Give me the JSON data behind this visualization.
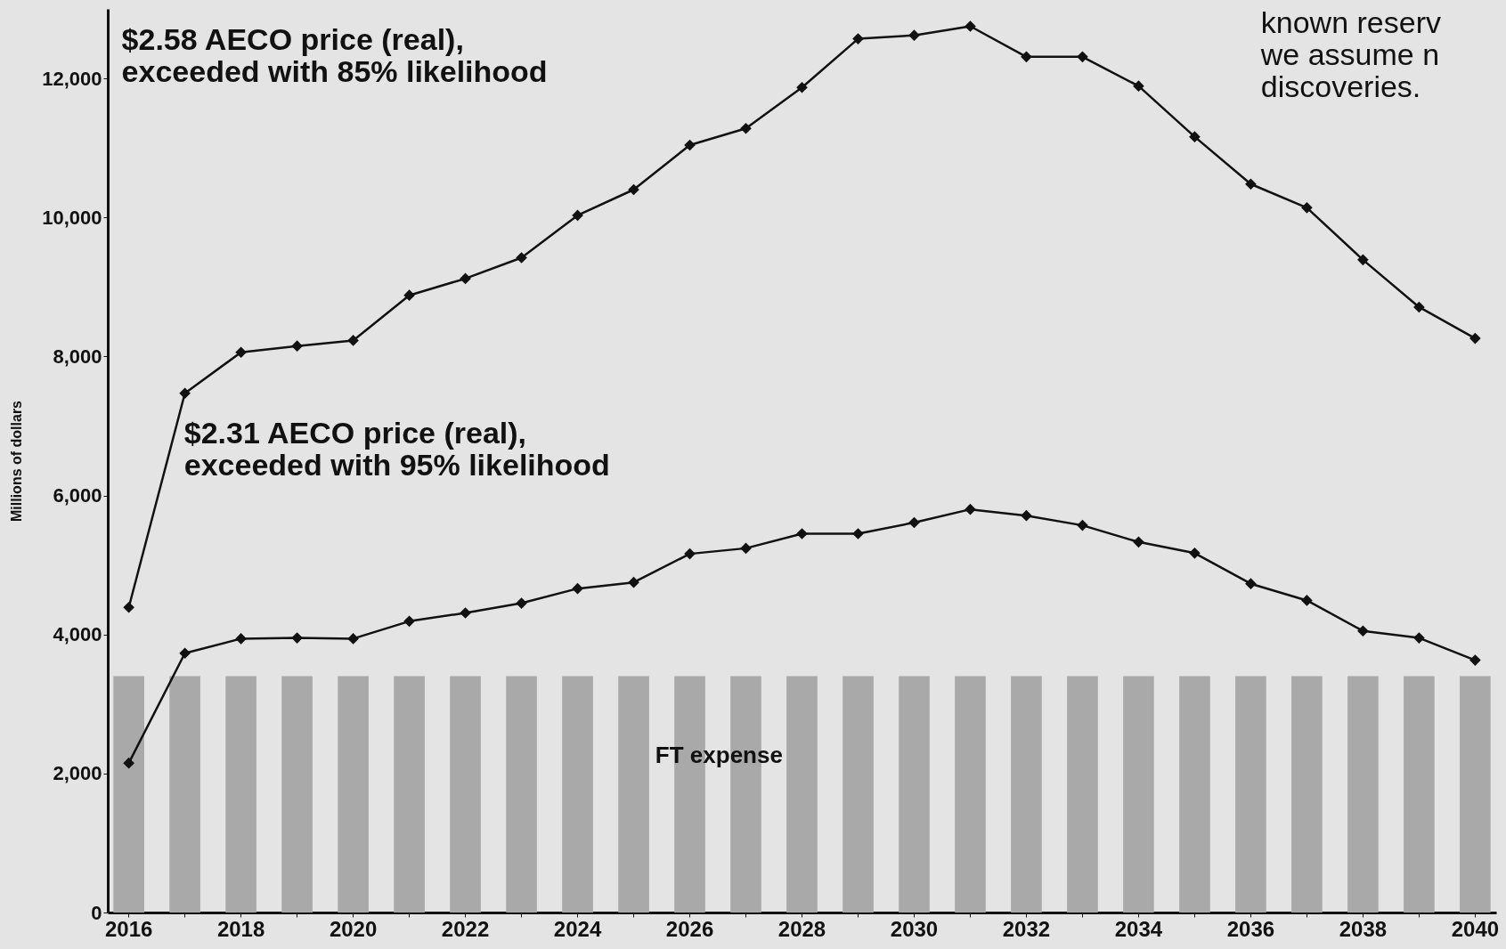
{
  "chart_data": {
    "type": "line",
    "ylabel": "Millions of dollars",
    "categories": [
      "2016",
      null,
      "2018",
      null,
      "2020",
      null,
      "2022",
      null,
      "2024",
      null,
      "2026",
      null,
      "2028",
      null,
      "2030",
      null,
      "2032",
      null,
      "2034",
      null,
      "2036",
      null,
      "2038",
      null,
      "2040"
    ],
    "series": [
      {
        "type": "bar",
        "color": "#a9a9a9",
        "values": [
          3400,
          3400,
          3400,
          3400,
          3400,
          3400,
          3400,
          3400,
          3400,
          3400,
          3400,
          3400,
          3400,
          3400,
          3400,
          3400,
          3400,
          3400,
          3400,
          3400,
          3400,
          3400,
          3400,
          3400,
          3400
        ]
      },
      {
        "color": "#111111",
        "values": [
          4390,
          7470,
          8060,
          8150,
          8230,
          8880,
          9120,
          9420,
          10030,
          10400,
          11040,
          11280,
          11870,
          12570,
          12620,
          12750,
          12310,
          12310,
          11890,
          11160,
          10480,
          10140,
          9390,
          8710,
          8260
        ]
      },
      {
        "color": "#111111",
        "values": [
          2150,
          3730,
          3940,
          3950,
          3940,
          4190,
          4310,
          4450,
          4660,
          4750,
          5160,
          5240,
          5450,
          5450,
          5610,
          5800,
          5710,
          5570,
          5330,
          5170,
          4730,
          4490,
          4050,
          3950,
          3630
        ]
      }
    ],
    "ylim": [
      0,
      13000
    ],
    "yticks": [
      0,
      {
        "value": 2000,
        "label": "2,000"
      },
      {
        "value": 4000,
        "label": "4,000"
      },
      {
        "value": 6000,
        "label": "6,000"
      },
      {
        "value": 8000,
        "label": "8,000"
      },
      {
        "value": 10000,
        "label": "10,000"
      },
      {
        "value": 12000,
        "label": "12,000"
      }
    ],
    "marker": "diamond",
    "line_style": "solid",
    "grid": false,
    "annotations": [
      "$2.58 AECO price (real),\nexceeded with 85% likelihood",
      "$2.31 AECO price (real),\nexceeded with 95% likelihood",
      "known reserv\nwe assume n\ndiscoveries.",
      "FT expense"
    ]
  }
}
